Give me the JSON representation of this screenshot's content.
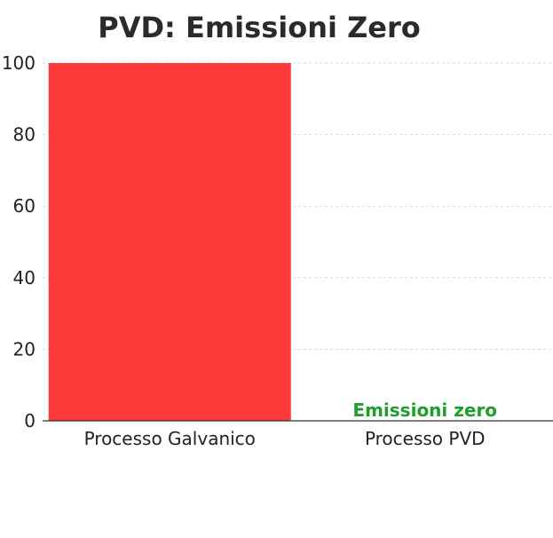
{
  "chart_data": {
    "type": "bar",
    "title": "PVD: Emissioni Zero",
    "xlabel": "",
    "ylabel": "",
    "categories": [
      "Processo Galvanico",
      "Processo PVD"
    ],
    "values": [
      100,
      0
    ],
    "ylim": [
      0,
      100
    ],
    "yticks": [
      "0",
      "20",
      "40",
      "60",
      "80",
      "100"
    ],
    "grid": true,
    "colors": [
      "#fc3a3a",
      "#1f9e2f"
    ],
    "annotation": {
      "text": "Emissioni zero",
      "category": "Processo PVD",
      "color": "#1f9e2f"
    }
  }
}
